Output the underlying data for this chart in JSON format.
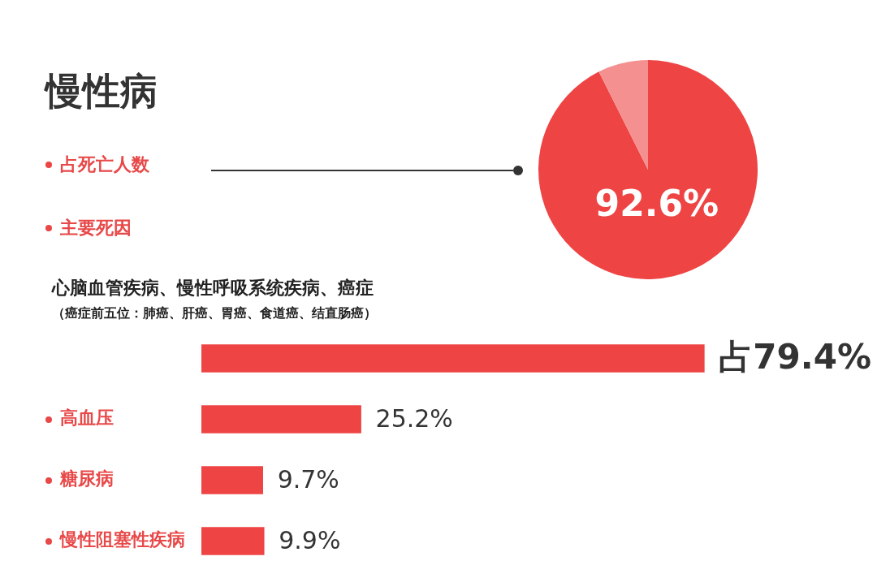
{
  "chart_data": [
    {
      "type": "pie",
      "title": "慢性病",
      "categories": [
        "占死亡人数",
        null
      ],
      "values": [
        92.6,
        7.4
      ],
      "colors": [
        "#ee4444",
        "#f59090"
      ],
      "value_labels": [
        "92.6%",
        null
      ],
      "legend": "left"
    },
    {
      "type": "bar",
      "orientation": "horizontal",
      "subtitle": "主要死因",
      "annotations": [
        "（癌症前五位：肺癌、肝癌、胃癌、食道癌、结直肠癌）"
      ],
      "categories": [
        "心脑血管疾病、慢性呼吸系统疾病、癌症",
        "高血压",
        "糖尿病",
        "慢性阻塞性疾病"
      ],
      "values": [
        79.4,
        25.2,
        9.7,
        9.9
      ],
      "color": "#ee4444",
      "value_labels": [
        "占79.4%",
        "25.2%",
        "9.7%",
        "9.9%"
      ],
      "tick_labels": false,
      "legend": false
    }
  ]
}
